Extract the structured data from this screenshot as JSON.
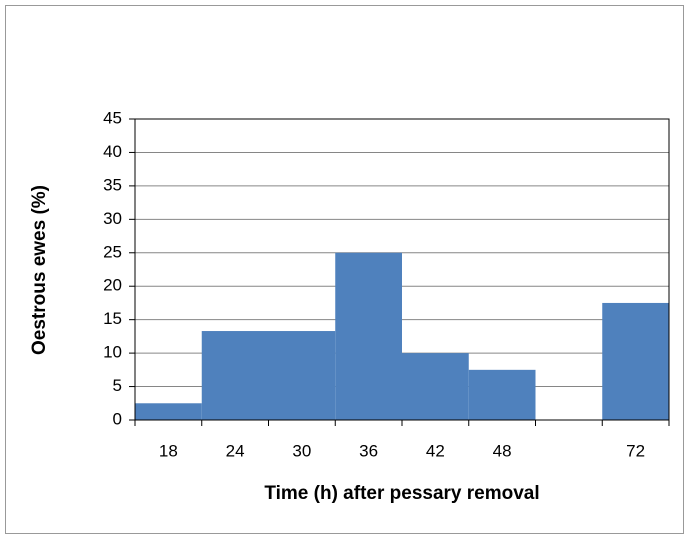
{
  "chart_data": {
    "type": "bar",
    "x_label": "Time (h) after pessary removal",
    "y_label": "Oestrous ewes (%)",
    "categories": [
      "18",
      "24",
      "30",
      "36",
      "42",
      "48",
      null,
      "72"
    ],
    "values": [
      2.5,
      13.3,
      13.3,
      25,
      10,
      7.5,
      0,
      17.5
    ],
    "color": "#4f81bd",
    "ylim": [
      0,
      45
    ],
    "yticks": [
      0,
      5,
      10,
      15,
      20,
      25,
      30,
      35,
      40,
      45
    ],
    "grid": true
  }
}
